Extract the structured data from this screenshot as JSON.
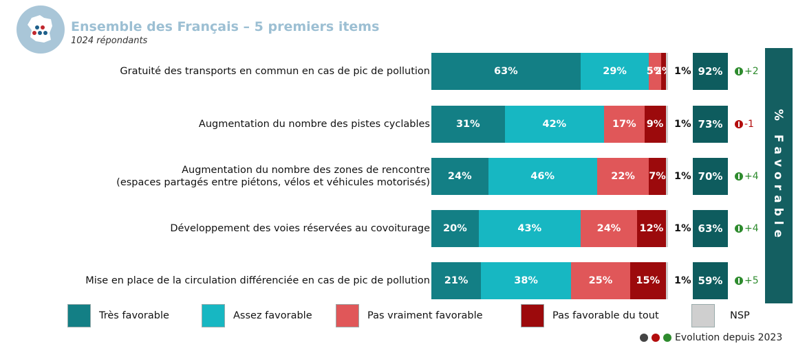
{
  "header": {
    "title": "Ensemble des Français – 5 premiers items",
    "subtitle": "1024 répondants"
  },
  "side_label": "% Favorable",
  "footer": {
    "label": "Evolution depuis 2023"
  },
  "colors": {
    "tres_favorable": "#137f85",
    "assez_favorable": "#17b7c2",
    "pas_vraiment": "#e05759",
    "pas_du_tout": "#9c0a0c",
    "nsp": "#cfcfcf",
    "favorable_box": "#0e5c5e",
    "evo_up": "#2e8b2e",
    "evo_down": "#b30d0d"
  },
  "chart_data": {
    "type": "bar",
    "orientation": "horizontal",
    "stacked": true,
    "categories": [
      "Gratuité des transports en commun en cas de pic de pollution",
      "Augmentation du nombre des pistes cyclables",
      "Augmentation du nombre des zones de rencontre\n(espaces partagés entre piétons, vélos et véhicules motorisés)",
      "Développement des voies réservées au covoiturage",
      "Mise en place de la circulation différenciée en cas de pic de pollution"
    ],
    "series": [
      {
        "name": "Très favorable",
        "values": [
          63,
          31,
          24,
          20,
          21
        ],
        "labels": [
          "63%",
          "31%",
          "24%",
          "20%",
          "21%"
        ]
      },
      {
        "name": "Assez favorable",
        "values": [
          29,
          42,
          46,
          43,
          38
        ],
        "labels": [
          "29%",
          "42%",
          "46%",
          "43%",
          "38%"
        ]
      },
      {
        "name": "Pas vraiment favorable",
        "values": [
          5,
          17,
          22,
          24,
          25
        ],
        "labels": [
          "5%",
          "17%",
          "22%",
          "24%",
          "25%"
        ]
      },
      {
        "name": "Pas favorable du tout",
        "values": [
          2,
          9,
          7,
          12,
          15
        ],
        "labels": [
          "2%",
          "9%",
          "7%",
          "12%",
          "15%"
        ]
      },
      {
        "name": "NSP",
        "values": [
          1,
          1,
          1,
          1,
          1
        ],
        "labels": [
          "1%",
          "1%",
          "1%",
          "1%",
          "1%"
        ]
      }
    ],
    "favorable_total": [
      "92%",
      "73%",
      "70%",
      "63%",
      "59%"
    ],
    "evolution": [
      {
        "direction": "up",
        "value": "+2"
      },
      {
        "direction": "down",
        "value": "-1"
      },
      {
        "direction": "up",
        "value": "+4"
      },
      {
        "direction": "up",
        "value": "+4"
      },
      {
        "direction": "up",
        "value": "+5"
      }
    ],
    "legend": [
      "Très favorable",
      "Assez favorable",
      "Pas vraiment favorable",
      "Pas favorable du tout",
      "NSP"
    ],
    "legend_position": "bottom"
  }
}
